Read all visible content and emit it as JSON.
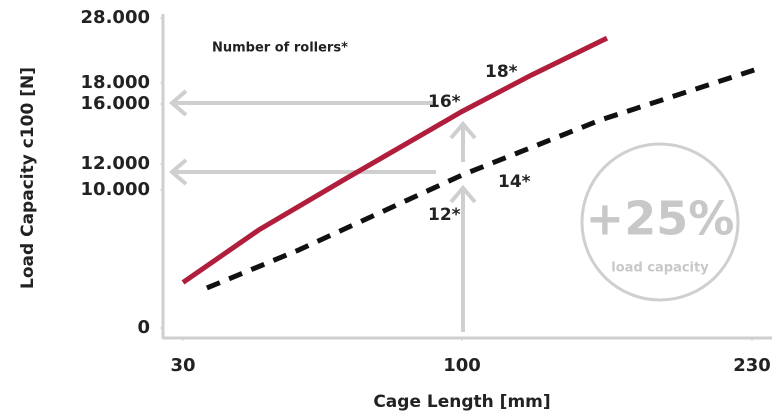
{
  "chart_data": {
    "type": "line",
    "y_label": "Load Capacity c100 [N]",
    "x_label": "Cage Length [mm]",
    "xlim": [
      25,
      238
    ],
    "xticks": [
      30,
      100,
      230
    ],
    "ylim": [
      0,
      28000
    ],
    "yticks": [
      {
        "value": 0,
        "label": "0"
      },
      {
        "value": 10000,
        "label": "10.000"
      },
      {
        "value": 12000,
        "label": "12.000"
      },
      {
        "value": 16000,
        "label": "16.000"
      },
      {
        "value": 18000,
        "label": "18.000"
      },
      {
        "value": 28000,
        "label": "28.000"
      }
    ],
    "series": [
      {
        "color": "#b01e3c",
        "style": "solid",
        "x": [
          30,
          49,
          71,
          100,
          131,
          165
        ],
        "values": [
          3300,
          7100,
          10900,
          15500,
          19200,
          24900
        ]
      },
      {
        "color": "#111111",
        "style": "dashed",
        "x": [
          36,
          59,
          100,
          162,
          231
        ],
        "values": [
          2900,
          5650,
          11150,
          14930,
          20000
        ]
      }
    ],
    "annotations": [
      "Number of rollers*",
      "18*",
      "16*",
      "14*",
      "12*",
      "+25%",
      "load capacity"
    ]
  }
}
